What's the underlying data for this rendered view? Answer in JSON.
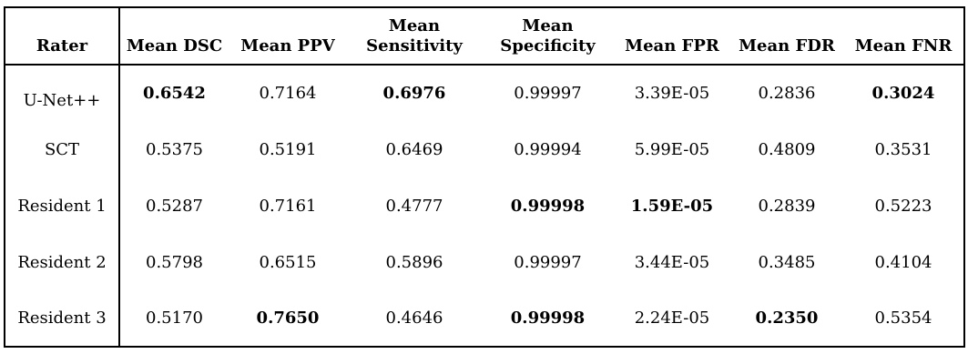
{
  "chart_data": {
    "type": "table",
    "columns": [
      "Rater",
      "Mean DSC",
      "Mean PPV",
      "Mean Sensitivity",
      "Mean Specificity",
      "Mean FPR",
      "Mean FDR",
      "Mean FNR"
    ],
    "rows": [
      {
        "cells": [
          "U-Net++",
          "0.6542",
          "0.7164",
          "0.6976",
          "0.99997",
          "3.39E-05",
          "0.2836",
          "0.3024"
        ],
        "bold": [
          false,
          true,
          false,
          true,
          false,
          false,
          false,
          true
        ]
      },
      {
        "cells": [
          "SCT",
          "0.5375",
          "0.5191",
          "0.6469",
          "0.99994",
          "5.99E-05",
          "0.4809",
          "0.3531"
        ],
        "bold": [
          false,
          false,
          false,
          false,
          false,
          false,
          false,
          false
        ]
      },
      {
        "cells": [
          "Resident 1",
          "0.5287",
          "0.7161",
          "0.4777",
          "0.99998",
          "1.59E-05",
          "0.2839",
          "0.5223"
        ],
        "bold": [
          false,
          false,
          false,
          false,
          true,
          true,
          false,
          false
        ]
      },
      {
        "cells": [
          "Resident 2",
          "0.5798",
          "0.6515",
          "0.5896",
          "0.99997",
          "3.44E-05",
          "0.3485",
          "0.4104"
        ],
        "bold": [
          false,
          false,
          false,
          false,
          false,
          false,
          false,
          false
        ]
      },
      {
        "cells": [
          "Resident 3",
          "0.5170",
          "0.7650",
          "0.4646",
          "0.99998",
          "2.24E-05",
          "0.2350",
          "0.5354"
        ],
        "bold": [
          false,
          false,
          true,
          false,
          true,
          false,
          true,
          false
        ]
      }
    ],
    "border_color": "#000000",
    "background_color": "#ffffff",
    "text_color": "#000000"
  }
}
